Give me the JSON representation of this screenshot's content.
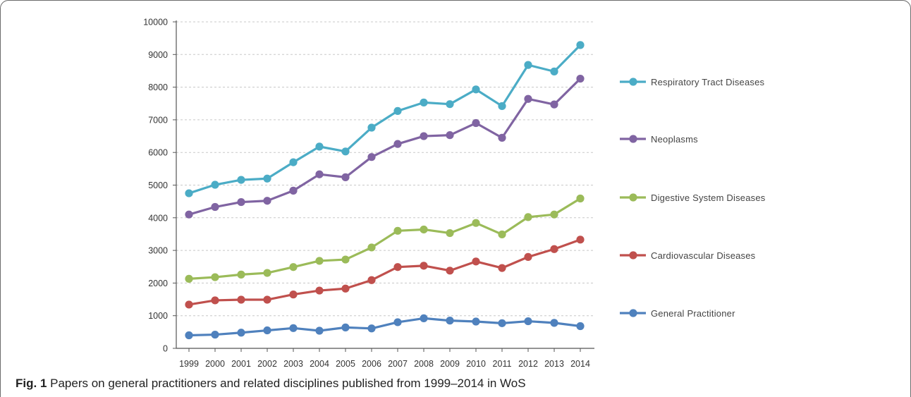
{
  "caption": {
    "label": "Fig. 1",
    "text": "Papers on general practitioners and related disciplines published from 1999–2014 in WoS"
  },
  "chart_data": {
    "type": "line",
    "title": "",
    "xlabel": "",
    "ylabel": "",
    "ylim": [
      0,
      10000
    ],
    "yticks": [
      0,
      1000,
      2000,
      3000,
      4000,
      5000,
      6000,
      7000,
      8000,
      9000,
      10000
    ],
    "grid": true,
    "legend_position": "right",
    "categories": [
      "1999",
      "2000",
      "2001",
      "2002",
      "2003",
      "2004",
      "2005",
      "2006",
      "2007",
      "2008",
      "2009",
      "2010",
      "2011",
      "2012",
      "2013",
      "2014"
    ],
    "series": [
      {
        "name": "Respiratory Tract Diseases",
        "color": "#4bacc6",
        "values": [
          4750,
          5010,
          5160,
          5200,
          5700,
          6180,
          6030,
          6760,
          7270,
          7530,
          7480,
          7930,
          7420,
          8680,
          8480,
          9290
        ]
      },
      {
        "name": "Neoplasms",
        "color": "#8064a2",
        "values": [
          4100,
          4330,
          4480,
          4520,
          4830,
          5330,
          5240,
          5860,
          6260,
          6500,
          6530,
          6900,
          6450,
          7640,
          7470,
          8260
        ]
      },
      {
        "name": "Digestive System Diseases",
        "color": "#9bbb59",
        "values": [
          2130,
          2180,
          2260,
          2310,
          2490,
          2680,
          2720,
          3090,
          3600,
          3640,
          3530,
          3840,
          3490,
          4020,
          4100,
          4590
        ]
      },
      {
        "name": "Cardiovascular Diseases",
        "color": "#c0504d",
        "values": [
          1340,
          1470,
          1490,
          1490,
          1650,
          1770,
          1830,
          2090,
          2490,
          2530,
          2380,
          2660,
          2460,
          2800,
          3040,
          3330
        ]
      },
      {
        "name": "General Practitioner",
        "color": "#4f81bd",
        "values": [
          400,
          420,
          480,
          550,
          620,
          540,
          640,
          610,
          800,
          920,
          850,
          820,
          770,
          830,
          780,
          680
        ]
      }
    ]
  }
}
